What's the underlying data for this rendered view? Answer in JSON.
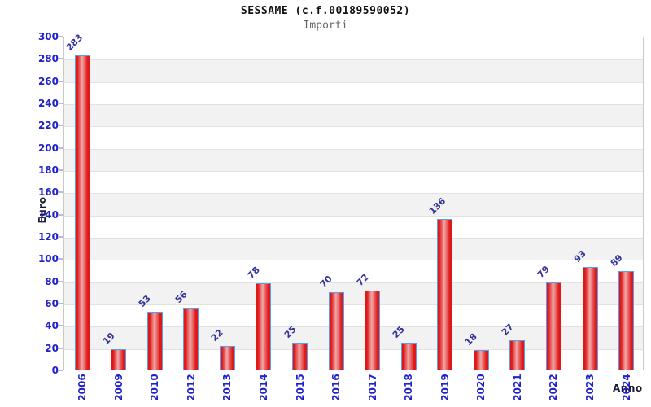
{
  "title": "SESSAME (c.f.00189590052)",
  "subtitle": "Importi",
  "chart_data": {
    "type": "bar",
    "categories": [
      "2006",
      "2009",
      "2010",
      "2012",
      "2013",
      "2014",
      "2015",
      "2016",
      "2017",
      "2018",
      "2019",
      "2020",
      "2021",
      "2022",
      "2023",
      "2024"
    ],
    "values": [
      283,
      19,
      53,
      56,
      22,
      78,
      25,
      70,
      72,
      25,
      136,
      18,
      27,
      79,
      93,
      89
    ],
    "title": "SESSAME (c.f.00189590052)",
    "subtitle": "Importi",
    "xlabel": "Anno",
    "ylabel": "Euro",
    "ylim": [
      0,
      300
    ],
    "y_step": 20,
    "grid": true,
    "legend": "none",
    "colors": {
      "bar_edge": "#e01818",
      "bar_center": "#efa9a9",
      "bar_border": "#55a0ee",
      "tick_label": "#2222cc",
      "value_label": "#333399",
      "band_gray": "#f2f2f2",
      "axis_title": "#1a1a33"
    }
  }
}
